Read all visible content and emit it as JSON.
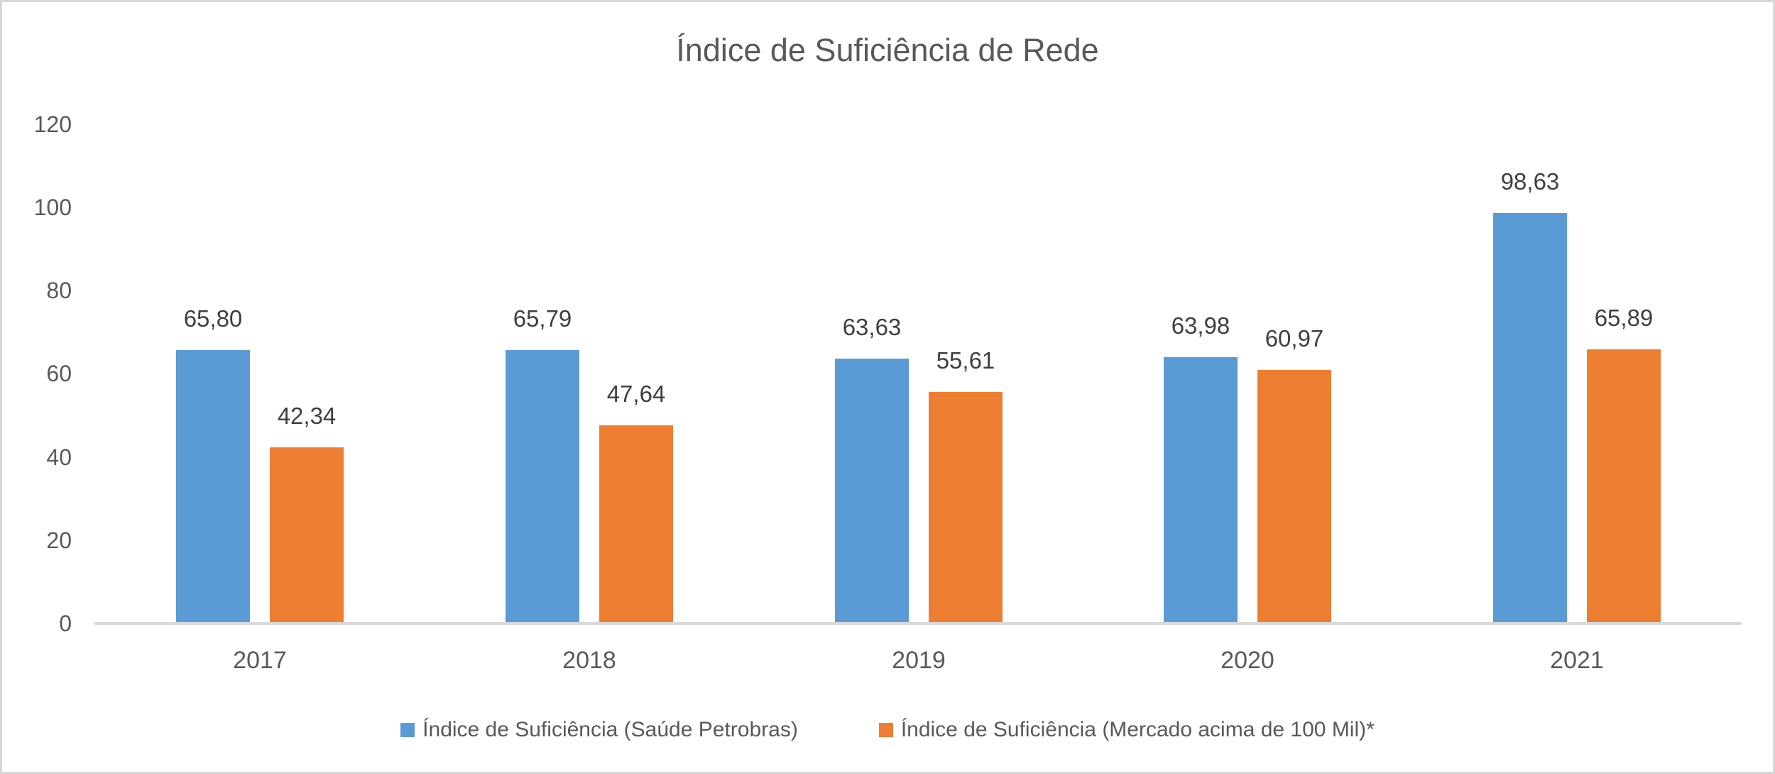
{
  "chart_data": {
    "type": "bar",
    "title": "Índice de Suficiência de Rede",
    "xlabel": "",
    "ylabel": "",
    "categories": [
      "2017",
      "2018",
      "2019",
      "2020",
      "2021"
    ],
    "series": [
      {
        "name": "Índice de Suficiência (Saúde Petrobras)",
        "color": "#5B9BD5",
        "values": [
          65.8,
          65.79,
          63.63,
          63.98,
          98.63
        ],
        "labels": [
          "65,80",
          "65,79",
          "63,63",
          "63,98",
          "98,63"
        ]
      },
      {
        "name": "Índice de Suficiência (Mercado acima de 100 Mil)*",
        "color": "#ED7D31",
        "values": [
          42.34,
          47.64,
          55.61,
          60.97,
          65.89
        ],
        "labels": [
          "42,34",
          "47,64",
          "55,61",
          "60,97",
          "65,89"
        ]
      }
    ],
    "y_ticks": [
      "120",
      "100",
      "80",
      "60",
      "40",
      "20",
      "0"
    ],
    "ylim": [
      0,
      120
    ],
    "grid": false,
    "legend_position": "bottom"
  },
  "colors": {
    "axis_text": "#595959",
    "data_label_text": "#3F3F3F",
    "axis_line": "#D9D9D9",
    "frame_border": "#D7D7D7",
    "background": "#FFFFFF"
  }
}
